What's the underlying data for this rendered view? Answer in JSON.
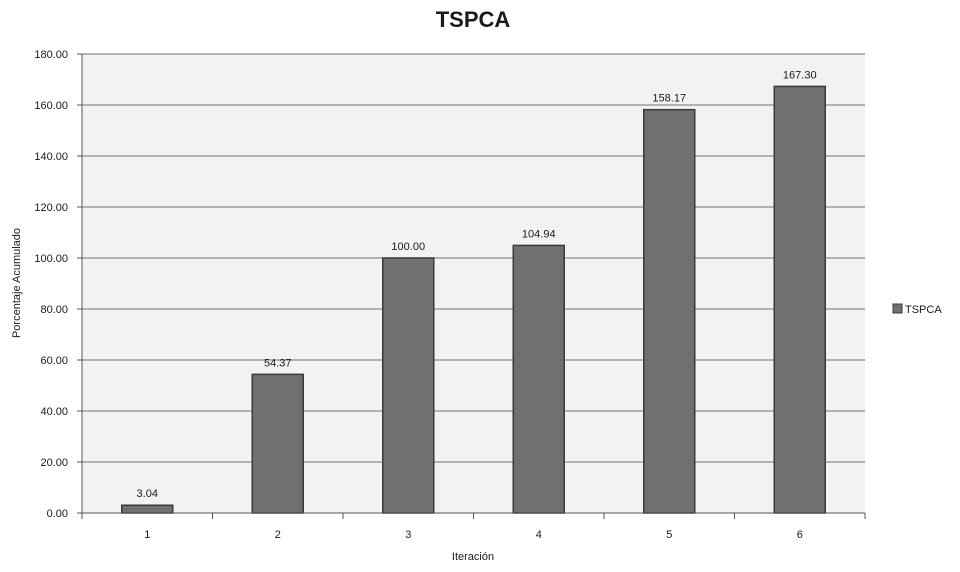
{
  "chart_data": {
    "type": "bar",
    "title": "TSPCA",
    "xlabel": "Iteración",
    "ylabel": "Porcentaje Acumulado",
    "categories": [
      "1",
      "2",
      "3",
      "4",
      "5",
      "6"
    ],
    "series": [
      {
        "name": "TSPCA",
        "values": [
          3.04,
          54.37,
          100.0,
          104.94,
          158.17,
          167.3
        ]
      }
    ],
    "data_labels": [
      "3.04",
      "54.37",
      "100.00",
      "104.94",
      "158.17",
      "167.30"
    ],
    "ylim": [
      0,
      180
    ],
    "yticks": [
      "0.00",
      "20.00",
      "40.00",
      "60.00",
      "80.00",
      "100.00",
      "120.00",
      "140.00",
      "160.00",
      "180.00"
    ],
    "grid": true,
    "legend_position": "right",
    "colors": {
      "bar": "#707070",
      "bar_edge": "#3a3a3a",
      "grid": "#8c8c8c",
      "plot_bg": "#f2f2f2"
    }
  }
}
